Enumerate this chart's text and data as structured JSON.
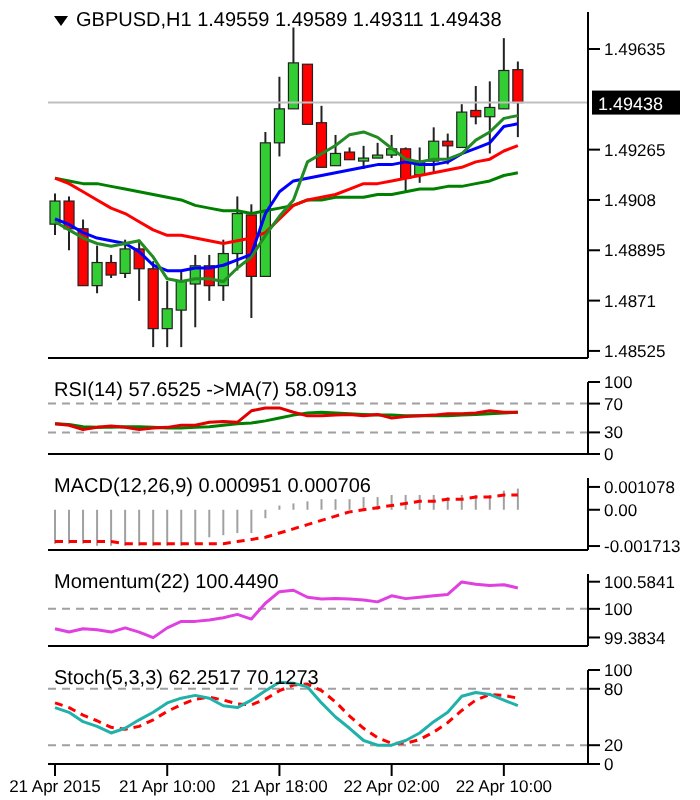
{
  "chart_data": [
    {
      "type": "candlestick",
      "title": "GBPUSD,H1 1.49559 1.49589 1.49311 1.49438",
      "x": [
        "2015-04-21T02:00",
        "2015-04-21T03:00",
        "2015-04-21T04:00",
        "2015-04-21T05:00",
        "2015-04-21T06:00",
        "2015-04-21T07:00",
        "2015-04-21T08:00",
        "2015-04-21T09:00",
        "2015-04-21T10:00",
        "2015-04-21T11:00",
        "2015-04-21T12:00",
        "2015-04-21T13:00",
        "2015-04-21T14:00",
        "2015-04-21T15:00",
        "2015-04-21T16:00",
        "2015-04-21T17:00",
        "2015-04-21T18:00",
        "2015-04-21T19:00",
        "2015-04-21T20:00",
        "2015-04-21T21:00",
        "2015-04-21T22:00",
        "2015-04-21T23:00",
        "2015-04-22T00:00",
        "2015-04-22T01:00",
        "2015-04-22T02:00",
        "2015-04-22T03:00",
        "2015-04-22T04:00",
        "2015-04-22T05:00",
        "2015-04-22T06:00",
        "2015-04-22T07:00",
        "2015-04-22T08:00",
        "2015-04-22T09:00",
        "2015-04-22T10:00",
        "2015-04-22T11:00"
      ],
      "ohlc": [
        [
          1.48991,
          1.49104,
          1.48951,
          1.49076
        ],
        [
          1.49076,
          1.49093,
          1.48895,
          1.48974
        ],
        [
          1.48974,
          1.49008,
          1.48765,
          1.48765
        ],
        [
          1.48765,
          1.48912,
          1.48737,
          1.4885
        ],
        [
          1.4885,
          1.48878,
          1.48793,
          1.48804
        ],
        [
          1.4881,
          1.48934,
          1.48793,
          1.489
        ],
        [
          1.489,
          1.48934,
          1.48709,
          1.48827
        ],
        [
          1.48827,
          1.48855,
          1.48539,
          1.48607
        ],
        [
          1.48607,
          1.48782,
          1.48539,
          1.4868
        ],
        [
          1.48675,
          1.48821,
          1.48539,
          1.48782
        ],
        [
          1.48771,
          1.48878,
          1.48612,
          1.48838
        ],
        [
          1.48838,
          1.48878,
          1.48709,
          1.48765
        ],
        [
          1.48765,
          1.48934,
          1.48709,
          1.48883
        ],
        [
          1.48883,
          1.49093,
          1.48821,
          1.4903
        ],
        [
          1.49025,
          1.49064,
          1.48646,
          1.48799
        ],
        [
          1.48799,
          1.4933,
          1.48799,
          1.4929
        ],
        [
          1.4929,
          1.49533,
          1.4924,
          1.49415
        ],
        [
          1.49415,
          1.49714,
          1.49415,
          1.49584
        ],
        [
          1.49579,
          1.49579,
          1.49358,
          1.49358
        ],
        [
          1.49364,
          1.49426,
          1.492,
          1.492
        ],
        [
          1.49206,
          1.49319,
          1.49206,
          1.49251
        ],
        [
          1.49256,
          1.49273,
          1.49228,
          1.49228
        ],
        [
          1.49223,
          1.49279,
          1.49194,
          1.49234
        ],
        [
          1.49234,
          1.4929,
          1.49234,
          1.49245
        ],
        [
          1.49245,
          1.49319,
          1.49234,
          1.49268
        ],
        [
          1.49268,
          1.49273,
          1.4911,
          1.4916
        ],
        [
          1.49172,
          1.49273,
          1.49143,
          1.49217
        ],
        [
          1.49223,
          1.49347,
          1.49177,
          1.49296
        ],
        [
          1.49296,
          1.49324,
          1.49211,
          1.49279
        ],
        [
          1.49273,
          1.49432,
          1.49273,
          1.49403
        ],
        [
          1.49409,
          1.49499,
          1.49358,
          1.49386
        ],
        [
          1.49386,
          1.49516,
          1.49251,
          1.4942
        ],
        [
          1.49415,
          1.49675,
          1.49415,
          1.49556
        ],
        [
          1.49559,
          1.49589,
          1.49311,
          1.49438
        ]
      ],
      "colors": [
        "#32cd32",
        "#ff0000",
        "#ff0000",
        "#32cd32",
        "#ff0000",
        "#32cd32",
        "#ff0000",
        "#ff0000",
        "#32cd32",
        "#32cd32",
        "#32cd32",
        "#ff0000",
        "#32cd32",
        "#32cd32",
        "#ff0000",
        "#32cd32",
        "#32cd32",
        "#32cd32",
        "#ff0000",
        "#ff0000",
        "#32cd32",
        "#ff0000",
        "#32cd32",
        "#32cd32",
        "#32cd32",
        "#ff0000",
        "#32cd32",
        "#32cd32",
        "#ff0000",
        "#32cd32",
        "#ff0000",
        "#32cd32",
        "#32cd32",
        "#ff0000"
      ],
      "series": [
        {
          "type": "line",
          "color": "#008000",
          "values": [
            1.4916,
            1.4915,
            1.4914,
            1.4914,
            1.4913,
            1.4912,
            1.4911,
            1.491,
            1.4909,
            1.4908,
            1.4906,
            1.4905,
            1.4904,
            1.4904,
            1.4903,
            1.4904,
            1.4905,
            1.4906,
            1.4908,
            1.4908,
            1.4909,
            1.4909,
            1.4909,
            1.491,
            1.491,
            1.4911,
            1.4912,
            1.4912,
            1.4913,
            1.4913,
            1.4914,
            1.4915,
            1.4917,
            1.4918
          ]
        },
        {
          "type": "line",
          "color": "#ff0000",
          "values": [
            1.4916,
            1.4914,
            1.4911,
            1.4908,
            1.4905,
            1.4903,
            1.49,
            1.4897,
            1.4895,
            1.4895,
            1.4894,
            1.4893,
            1.4892,
            1.4893,
            1.4894,
            1.4896,
            1.4901,
            1.4906,
            1.4908,
            1.4909,
            1.491,
            1.4912,
            1.4914,
            1.4914,
            1.4915,
            1.4916,
            1.4917,
            1.4918,
            1.4919,
            1.492,
            1.4922,
            1.4923,
            1.4926,
            1.4928
          ]
        },
        {
          "type": "line",
          "color": "#0000ff",
          "values": [
            1.4901,
            1.4899,
            1.4896,
            1.4894,
            1.4893,
            1.4892,
            1.4889,
            1.4884,
            1.4882,
            1.4882,
            1.4883,
            1.4883,
            1.4884,
            1.4886,
            1.4888,
            1.4903,
            1.4911,
            1.4915,
            1.4916,
            1.4917,
            1.4918,
            1.4919,
            1.492,
            1.4921,
            1.4921,
            1.4922,
            1.4921,
            1.4921,
            1.4922,
            1.4925,
            1.4927,
            1.4929,
            1.4935,
            1.4936
          ]
        },
        {
          "type": "line",
          "color": "#228b22",
          "values": [
            1.49,
            1.4897,
            1.4894,
            1.4892,
            1.4891,
            1.4892,
            1.4893,
            1.4887,
            1.4879,
            1.4878,
            1.4879,
            1.4879,
            1.4878,
            1.4883,
            1.4887,
            1.4895,
            1.4902,
            1.4908,
            1.4922,
            1.4925,
            1.4928,
            1.4932,
            1.4933,
            1.4931,
            1.4927,
            1.4923,
            1.4922,
            1.4923,
            1.4923,
            1.4925,
            1.493,
            1.4933,
            1.4938,
            1.4939
          ]
        }
      ],
      "xlim": [
        "2015-04-21T01:30",
        "2015-04-22T16:00"
      ],
      "ylim": [
        1.48499,
        1.49771
      ],
      "yticks": [
        1.49635,
        1.49265,
        1.4908,
        1.48895,
        1.4871,
        1.48525
      ],
      "ref_lines": [
        {
          "axis": "y",
          "value": 1.49438,
          "label": "1.49438",
          "color": "#c0c0c0"
        }
      ],
      "tick_labels": "y"
    },
    {
      "type": "line",
      "title": "RSI(14) 57.6525 ->MA(7) 58.0913",
      "x": [
        "2015-04-21T02:00",
        "2015-04-21T03:00",
        "2015-04-21T04:00",
        "2015-04-21T05:00",
        "2015-04-21T06:00",
        "2015-04-21T07:00",
        "2015-04-21T08:00",
        "2015-04-21T09:00",
        "2015-04-21T10:00",
        "2015-04-21T11:00",
        "2015-04-21T12:00",
        "2015-04-21T13:00",
        "2015-04-21T14:00",
        "2015-04-21T15:00",
        "2015-04-21T16:00",
        "2015-04-21T17:00",
        "2015-04-21T18:00",
        "2015-04-21T19:00",
        "2015-04-21T20:00",
        "2015-04-21T21:00",
        "2015-04-21T22:00",
        "2015-04-21T23:00",
        "2015-04-22T00:00",
        "2015-04-22T01:00",
        "2015-04-22T02:00",
        "2015-04-22T03:00",
        "2015-04-22T04:00",
        "2015-04-22T05:00",
        "2015-04-22T06:00",
        "2015-04-22T07:00",
        "2015-04-22T08:00",
        "2015-04-22T09:00",
        "2015-04-22T10:00",
        "2015-04-22T11:00"
      ],
      "series": [
        {
          "type": "line",
          "color": "#008000",
          "values": [
            42,
            41,
            38,
            37,
            37,
            38,
            38,
            37,
            36,
            36,
            37,
            38,
            40,
            42,
            43,
            46,
            50,
            54,
            57,
            58,
            57,
            56,
            55,
            54,
            54,
            53,
            53,
            53,
            53,
            54,
            55,
            56,
            57,
            58
          ]
        },
        {
          "type": "line",
          "color": "#e00000",
          "values": [
            42,
            40,
            34,
            37,
            39,
            37,
            34,
            36,
            37,
            40,
            40,
            44,
            45,
            44,
            60,
            64,
            64,
            58,
            53,
            53,
            54,
            55,
            53,
            55,
            50,
            52,
            53,
            54,
            56,
            56,
            57,
            60,
            58,
            58
          ]
        }
      ],
      "xlim": [
        "2015-04-21T01:30",
        "2015-04-22T16:00"
      ],
      "ylim": [
        0,
        100
      ],
      "yticks": [
        100,
        70,
        30,
        0
      ],
      "ref_lines": [
        {
          "axis": "y",
          "value": 70,
          "color": "#a0a0a0",
          "line_style": "dashed"
        },
        {
          "axis": "y",
          "value": 30,
          "color": "#a0a0a0",
          "line_style": "dashed"
        }
      ],
      "tick_labels": "y"
    },
    {
      "type": "line",
      "title": "MACD(12,26,9) 0.000951 0.000706",
      "x": [
        "2015-04-21T02:00",
        "2015-04-21T03:00",
        "2015-04-21T04:00",
        "2015-04-21T05:00",
        "2015-04-21T06:00",
        "2015-04-21T07:00",
        "2015-04-21T08:00",
        "2015-04-21T09:00",
        "2015-04-21T10:00",
        "2015-04-21T11:00",
        "2015-04-21T12:00",
        "2015-04-21T13:00",
        "2015-04-21T14:00",
        "2015-04-21T15:00",
        "2015-04-21T16:00",
        "2015-04-21T17:00",
        "2015-04-21T18:00",
        "2015-04-21T19:00",
        "2015-04-21T20:00",
        "2015-04-21T21:00",
        "2015-04-21T22:00",
        "2015-04-21T23:00",
        "2015-04-22T00:00",
        "2015-04-22T01:00",
        "2015-04-22T02:00",
        "2015-04-22T03:00",
        "2015-04-22T04:00",
        "2015-04-22T05:00",
        "2015-04-22T06:00",
        "2015-04-22T07:00",
        "2015-04-22T08:00",
        "2015-04-22T09:00",
        "2015-04-22T10:00",
        "2015-04-22T11:00"
      ],
      "series": [
        {
          "type": "bar",
          "color": "#a0a0a0",
          "values": [
            -0.0016,
            -0.0016,
            -0.0016,
            -0.0017,
            -0.0017,
            -0.0017,
            -0.0017,
            -0.0017,
            -0.0017,
            -0.0017,
            -0.0016,
            -0.0013,
            -0.0012,
            -0.0011,
            -0.0011,
            -0.0004,
            0.0002,
            0.0003,
            0.0004,
            0.0005,
            0.0005,
            0.0005,
            0.0006,
            0.0006,
            0.0007,
            0.0007,
            0.0007,
            0.0007,
            0.0006,
            0.0007,
            0.0007,
            0.0007,
            0.0009,
            0.001
          ]
        },
        {
          "type": "line",
          "color": "#ff0000",
          "line_style": "dashed",
          "values": [
            -0.0015,
            -0.0015,
            -0.0015,
            -0.0015,
            -0.0015,
            -0.0016,
            -0.0016,
            -0.0016,
            -0.0016,
            -0.0016,
            -0.0016,
            -0.0016,
            -0.0016,
            -0.0015,
            -0.0014,
            -0.0013,
            -0.0011,
            -0.0009,
            -0.0007,
            -0.0005,
            -0.0003,
            -0.0001,
            0,
            0.0001,
            0.0002,
            0.0003,
            0.0004,
            0.0004,
            0.0005,
            0.0005,
            0.0006,
            0.0006,
            0.0007,
            0.0007
          ]
        }
      ],
      "xlim": [
        "2015-04-21T01:30",
        "2015-04-22T16:00"
      ],
      "ylim": [
        -0.0019,
        0.0015
      ],
      "yticks": [
        0.001078,
        {
          "value": 0,
          "label": "0.00"
        },
        -0.001713
      ],
      "tick_labels": "y"
    },
    {
      "type": "line",
      "title": "Momentum(22) 100.4490",
      "x": [
        "2015-04-21T02:00",
        "2015-04-21T03:00",
        "2015-04-21T04:00",
        "2015-04-21T05:00",
        "2015-04-21T06:00",
        "2015-04-21T07:00",
        "2015-04-21T08:00",
        "2015-04-21T09:00",
        "2015-04-21T10:00",
        "2015-04-21T11:00",
        "2015-04-21T12:00",
        "2015-04-21T13:00",
        "2015-04-21T14:00",
        "2015-04-21T15:00",
        "2015-04-21T16:00",
        "2015-04-21T17:00",
        "2015-04-21T18:00",
        "2015-04-21T19:00",
        "2015-04-21T20:00",
        "2015-04-21T21:00",
        "2015-04-21T22:00",
        "2015-04-21T23:00",
        "2015-04-22T00:00",
        "2015-04-22T01:00",
        "2015-04-22T02:00",
        "2015-04-22T03:00",
        "2015-04-22T04:00",
        "2015-04-22T05:00",
        "2015-04-22T06:00",
        "2015-04-22T07:00",
        "2015-04-22T08:00",
        "2015-04-22T09:00",
        "2015-04-22T10:00",
        "2015-04-22T11:00"
      ],
      "series": [
        {
          "type": "line",
          "color": "#e040e0",
          "values": [
            99.57,
            99.5,
            99.57,
            99.55,
            99.5,
            99.59,
            99.5,
            99.38,
            99.59,
            99.73,
            99.73,
            99.76,
            99.81,
            99.88,
            99.78,
            100.12,
            100.37,
            100.4,
            100.25,
            100.21,
            100.22,
            100.21,
            100.19,
            100.15,
            100.28,
            100.22,
            100.25,
            100.28,
            100.31,
            100.58,
            100.53,
            100.5,
            100.52,
            100.45
          ]
        }
      ],
      "xlim": [
        "2015-04-21T01:30",
        "2015-04-22T16:00"
      ],
      "ylim": [
        99.2,
        100.75
      ],
      "yticks": [
        100.5841,
        100,
        99.3834
      ],
      "ref_lines": [
        {
          "axis": "y",
          "value": 100,
          "color": "#a0a0a0",
          "line_style": "dashed"
        }
      ],
      "tick_labels": "y"
    },
    {
      "type": "line",
      "title": "Stoch(5,3,3) 62.2517 70.1273",
      "x": [
        "2015-04-21T02:00",
        "2015-04-21T03:00",
        "2015-04-21T04:00",
        "2015-04-21T05:00",
        "2015-04-21T06:00",
        "2015-04-21T07:00",
        "2015-04-21T08:00",
        "2015-04-21T09:00",
        "2015-04-21T10:00",
        "2015-04-21T11:00",
        "2015-04-21T12:00",
        "2015-04-21T13:00",
        "2015-04-21T14:00",
        "2015-04-21T15:00",
        "2015-04-21T16:00",
        "2015-04-21T17:00",
        "2015-04-21T18:00",
        "2015-04-21T19:00",
        "2015-04-21T20:00",
        "2015-04-21T21:00",
        "2015-04-21T22:00",
        "2015-04-21T23:00",
        "2015-04-22T00:00",
        "2015-04-22T01:00",
        "2015-04-22T02:00",
        "2015-04-22T03:00",
        "2015-04-22T04:00",
        "2015-04-22T05:00",
        "2015-04-22T06:00",
        "2015-04-22T07:00",
        "2015-04-22T08:00",
        "2015-04-22T09:00",
        "2015-04-22T10:00",
        "2015-04-22T11:00"
      ],
      "series": [
        {
          "type": "line",
          "color": "#ff0000",
          "line_style": "dashed",
          "values": [
            65,
            60,
            52,
            46,
            39,
            37,
            40,
            47,
            56,
            63,
            69,
            71,
            68,
            64,
            63,
            69,
            78,
            84,
            85,
            78,
            66,
            51,
            38,
            28,
            22,
            22,
            26,
            34,
            44,
            57,
            68,
            74,
            73,
            70
          ]
        },
        {
          "type": "line",
          "color": "#20b2aa",
          "values": [
            60,
            55,
            45,
            40,
            33,
            38,
            47,
            55,
            65,
            70,
            73,
            70,
            62,
            60,
            68,
            78,
            87,
            86,
            82,
            65,
            50,
            38,
            25,
            20,
            20,
            25,
            33,
            45,
            55,
            72,
            76,
            74,
            68,
            62
          ]
        }
      ],
      "xlim": [
        "2015-04-21T01:30",
        "2015-04-22T16:00"
      ],
      "xticks": [
        {
          "value": "2015-04-21T02:00",
          "label": "21 Apr 2015"
        },
        {
          "value": "2015-04-21T10:00",
          "label": "21 Apr 10:00"
        },
        {
          "value": "2015-04-21T18:00",
          "label": "21 Apr 18:00"
        },
        {
          "value": "2015-04-22T02:00",
          "label": "22 Apr 02:00"
        },
        {
          "value": "2015-04-22T10:00",
          "label": "22 Apr 10:00"
        }
      ],
      "ylim": [
        0,
        100
      ],
      "yticks": [
        100,
        80,
        20,
        0
      ],
      "ref_lines": [
        {
          "axis": "y",
          "value": 80,
          "color": "#a0a0a0",
          "line_style": "dashed"
        },
        {
          "axis": "y",
          "value": 20,
          "color": "#a0a0a0",
          "line_style": "dashed"
        }
      ]
    }
  ]
}
